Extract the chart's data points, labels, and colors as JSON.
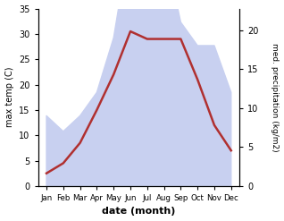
{
  "months": [
    "Jan",
    "Feb",
    "Mar",
    "Apr",
    "May",
    "Jun",
    "Jul",
    "Aug",
    "Sep",
    "Oct",
    "Nov",
    "Dec"
  ],
  "x": [
    1,
    2,
    3,
    4,
    5,
    6,
    7,
    8,
    9,
    10,
    11,
    12
  ],
  "temperature": [
    2.5,
    4.5,
    8.5,
    15,
    22,
    30.5,
    29,
    29,
    29,
    21,
    12,
    7
  ],
  "precipitation": [
    9,
    7,
    9,
    12,
    19,
    32,
    26,
    31,
    21,
    18,
    18,
    12
  ],
  "temp_color": "#b03030",
  "precip_fill_color": "#c8d0f0",
  "temp_ylim": [
    0,
    35
  ],
  "left_yticks": [
    0,
    5,
    10,
    15,
    20,
    25,
    30,
    35
  ],
  "right_ylim": [
    0,
    22.75
  ],
  "right_yticks": [
    0,
    5,
    10,
    15,
    20
  ],
  "xlabel": "date (month)",
  "ylabel_left": "max temp (C)",
  "ylabel_right": "med. precipitation (kg/m2)",
  "temp_linewidth": 1.8,
  "background_color": "#ffffff",
  "precip_scale_factor": 1.525
}
